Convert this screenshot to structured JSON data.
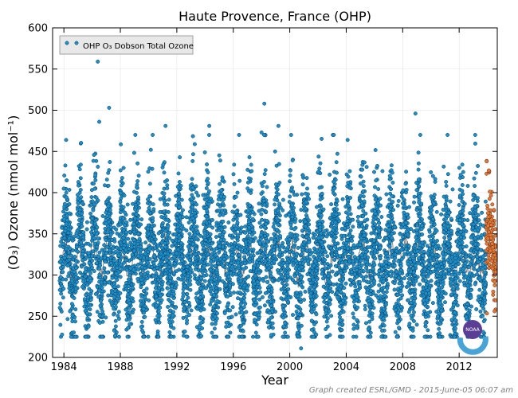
{
  "chart_data": {
    "type": "scatter",
    "title": "Haute Provence, France (OHP)",
    "xlabel": "Year",
    "ylabel": "(O₃) Ozone (nmol mol⁻¹)",
    "xlim": [
      1983.2,
      2014.7
    ],
    "ylim": [
      200,
      600
    ],
    "xticks": [
      1984,
      1988,
      1992,
      1996,
      2000,
      2004,
      2008,
      2012
    ],
    "yticks": [
      200,
      250,
      300,
      350,
      400,
      450,
      500,
      550,
      600
    ],
    "grid": true,
    "legend": {
      "placement": "top-left",
      "entries": [
        "OHP O₃ Dobson Total Ozone"
      ]
    },
    "series": [
      {
        "name": "OHP O₃ Dobson Total Ozone",
        "marker": "circle",
        "color": "#1f8fc7",
        "generator": {
          "x_start": 1983.7,
          "x_end": 2013.9,
          "mean": 318,
          "seasonal_amplitude": 48,
          "spread": 34,
          "points_per_year": 200,
          "seed": 7
        },
        "outliers": [
          {
            "x": 1986.4,
            "y": 559
          },
          {
            "x": 1987.2,
            "y": 503
          },
          {
            "x": 1998.2,
            "y": 508
          },
          {
            "x": 2008.9,
            "y": 496
          },
          {
            "x": 2000.8,
            "y": 211
          },
          {
            "x": 1986.5,
            "y": 486
          },
          {
            "x": 1999.2,
            "y": 481
          },
          {
            "x": 1991.2,
            "y": 481
          },
          {
            "x": 1994.3,
            "y": 481
          },
          {
            "x": 1998.0,
            "y": 473
          },
          {
            "x": 2004.1,
            "y": 464
          }
        ]
      },
      {
        "name": "",
        "marker": "circle",
        "color": "#e07a3a",
        "generator": {
          "x_start": 2013.9,
          "x_end": 2014.6,
          "mean": 330,
          "seasonal_amplitude": 30,
          "spread": 28,
          "points_per_year": 200,
          "seed": 11
        },
        "outliers": [
          {
            "x": 2013.95,
            "y": 438
          },
          {
            "x": 2014.1,
            "y": 427
          }
        ]
      },
      {
        "name": "",
        "type": "line",
        "color": "#707070",
        "generator": {
          "x_start": 1983.7,
          "x_end": 2014.5,
          "mean": 318,
          "seasonal_amplitude": 22,
          "step": 0.05,
          "seed": 3
        }
      }
    ]
  },
  "footer": {
    "text": "Graph created ESRL/GMD - 2015-June-05 06:07 am"
  },
  "logo": {
    "text": "NOAA"
  },
  "colors": {
    "scatter_fill": "#1f8fc7",
    "scatter_edge": "#0b3f66",
    "recent_fill": "#e07a3a",
    "recent_edge": "#6b2f10",
    "trend_line": "#707070"
  }
}
